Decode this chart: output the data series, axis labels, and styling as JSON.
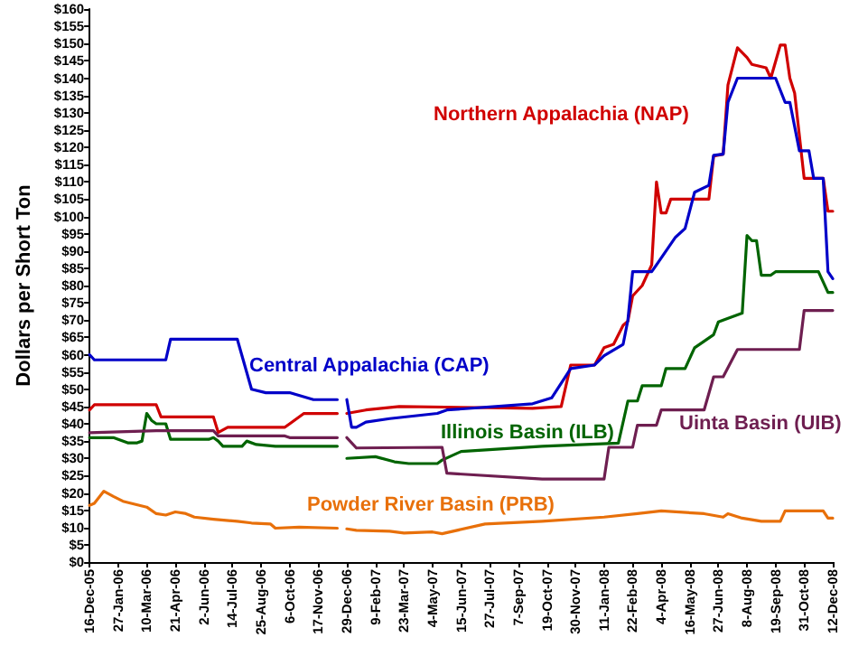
{
  "chart_data": {
    "type": "line",
    "ylabel": "Dollars per Short Ton",
    "legend": false,
    "grid": false,
    "marker": "none",
    "line_style": "solid",
    "xlim": [
      "2005-12-16",
      "2008-12-12"
    ],
    "xticks": [
      {
        "value": "2005-12-16",
        "label": "16-Dec-05"
      },
      {
        "value": "2006-01-27",
        "label": "27-Jan-06"
      },
      {
        "value": "2006-03-10",
        "label": "10-Mar-06"
      },
      {
        "value": "2006-04-21",
        "label": "21-Apr-06"
      },
      {
        "value": "2006-06-02",
        "label": "2-Jun-06"
      },
      {
        "value": "2006-07-14",
        "label": "14-Jul-06"
      },
      {
        "value": "2006-08-25",
        "label": "25-Aug-06"
      },
      {
        "value": "2006-10-06",
        "label": "6-Oct-06"
      },
      {
        "value": "2006-11-17",
        "label": "17-Nov-06"
      },
      {
        "value": "2006-12-29",
        "label": "29-Dec-06"
      },
      {
        "value": "2007-02-09",
        "label": "9-Feb-07"
      },
      {
        "value": "2007-03-23",
        "label": "23-Mar-07"
      },
      {
        "value": "2007-05-04",
        "label": "4-May-07"
      },
      {
        "value": "2007-06-15",
        "label": "15-Jun-07"
      },
      {
        "value": "2007-07-27",
        "label": "27-Jul-07"
      },
      {
        "value": "2007-09-07",
        "label": "7-Sep-07"
      },
      {
        "value": "2007-10-19",
        "label": "19-Oct-07"
      },
      {
        "value": "2007-11-30",
        "label": "30-Nov-07"
      },
      {
        "value": "2008-01-11",
        "label": "11-Jan-08"
      },
      {
        "value": "2008-02-22",
        "label": "22-Feb-08"
      },
      {
        "value": "2008-04-04",
        "label": "4-Apr-08"
      },
      {
        "value": "2008-05-16",
        "label": "16-May-08"
      },
      {
        "value": "2008-06-27",
        "label": "27-Jun-08"
      },
      {
        "value": "2008-08-08",
        "label": "8-Aug-08"
      },
      {
        "value": "2008-09-19",
        "label": "19-Sep-08"
      },
      {
        "value": "2008-10-31",
        "label": "31-Oct-08"
      },
      {
        "value": "2008-12-12",
        "label": "12-Dec-08"
      }
    ],
    "ylim": [
      0,
      160
    ],
    "yticks": [
      {
        "value": 0,
        "label": "$0"
      },
      {
        "value": 5,
        "label": "$5"
      },
      {
        "value": 10,
        "label": "$10"
      },
      {
        "value": 15,
        "label": "$15"
      },
      {
        "value": 20,
        "label": "$20"
      },
      {
        "value": 25,
        "label": "$25"
      },
      {
        "value": 30,
        "label": "$30"
      },
      {
        "value": 35,
        "label": "$35"
      },
      {
        "value": 40,
        "label": "$40"
      },
      {
        "value": 45,
        "label": "$45"
      },
      {
        "value": 50,
        "label": "$50"
      },
      {
        "value": 55,
        "label": "$55"
      },
      {
        "value": 60,
        "label": "$60"
      },
      {
        "value": 65,
        "label": "$65"
      },
      {
        "value": 70,
        "label": "$70"
      },
      {
        "value": 75,
        "label": "$75"
      },
      {
        "value": 80,
        "label": "$80"
      },
      {
        "value": 85,
        "label": "$85"
      },
      {
        "value": 90,
        "label": "$90"
      },
      {
        "value": 95,
        "label": "$95"
      },
      {
        "value": 100,
        "label": "$100"
      },
      {
        "value": 105,
        "label": "$105"
      },
      {
        "value": 110,
        "label": "$110"
      },
      {
        "value": 115,
        "label": "$115"
      },
      {
        "value": 120,
        "label": "$120"
      },
      {
        "value": 125,
        "label": "$125"
      },
      {
        "value": 130,
        "label": "$130"
      },
      {
        "value": 135,
        "label": "$135"
      },
      {
        "value": 140,
        "label": "$140"
      },
      {
        "value": 145,
        "label": "$145"
      },
      {
        "value": 150,
        "label": "$150"
      },
      {
        "value": 155,
        "label": "$155"
      },
      {
        "value": 160,
        "label": "$160"
      }
    ],
    "series": [
      {
        "name": "Northern Appalachia (NAP)",
        "color": "#d00000",
        "x": [
          "2005-12-16",
          "2005-12-23",
          "2006-03-24",
          "2006-03-31",
          "2006-06-16",
          "2006-06-23",
          "2006-07-07",
          "2006-09-29",
          "2006-10-06",
          "2006-10-27",
          "2006-12-15",
          "2006-12-22",
          "2006-12-29",
          "2007-01-26",
          "2007-03-16",
          "2007-09-28",
          "2007-11-09",
          "2007-11-16",
          "2007-11-23",
          "2007-12-28",
          "2008-01-11",
          "2008-01-25",
          "2008-02-08",
          "2008-02-15",
          "2008-02-22",
          "2008-03-07",
          "2008-03-21",
          "2008-03-28",
          "2008-04-04",
          "2008-04-11",
          "2008-04-18",
          "2008-06-13",
          "2008-06-20",
          "2008-07-04",
          "2008-07-11",
          "2008-07-25",
          "2008-08-08",
          "2008-08-15",
          "2008-09-05",
          "2008-09-12",
          "2008-09-26",
          "2008-10-03",
          "2008-10-10",
          "2008-10-17",
          "2008-10-31",
          "2008-11-28",
          "2008-12-05",
          "2008-12-12"
        ],
        "values": [
          44,
          45.5,
          45.5,
          42,
          42,
          37.5,
          39,
          39,
          40,
          43,
          43,
          null,
          43,
          44,
          45,
          44.5,
          45,
          51,
          57,
          57,
          62,
          63,
          68.5,
          69.7,
          77,
          80,
          86,
          110,
          101,
          101,
          105,
          105,
          117.5,
          118,
          138,
          148.8,
          146,
          144,
          143,
          140,
          149.6,
          149.6,
          140,
          135.7,
          111,
          111,
          101.5,
          101.5
        ]
      },
      {
        "name": "Central Appalachia (CAP)",
        "color": "#0000c8",
        "x": [
          "2005-12-16",
          "2005-12-23",
          "2006-04-07",
          "2006-04-14",
          "2006-07-21",
          "2006-08-11",
          "2006-09-01",
          "2006-10-06",
          "2006-11-10",
          "2006-12-15",
          "2006-12-22",
          "2006-12-29",
          "2007-01-05",
          "2007-01-12",
          "2007-01-26",
          "2007-03-02",
          "2007-05-11",
          "2007-05-25",
          "2007-09-28",
          "2007-10-26",
          "2007-11-23",
          "2007-12-28",
          "2008-01-11",
          "2008-02-08",
          "2008-02-15",
          "2008-02-22",
          "2008-03-21",
          "2008-03-28",
          "2008-04-25",
          "2008-05-09",
          "2008-05-23",
          "2008-06-13",
          "2008-06-20",
          "2008-07-04",
          "2008-07-11",
          "2008-07-25",
          "2008-09-19",
          "2008-10-03",
          "2008-10-10",
          "2008-10-24",
          "2008-11-07",
          "2008-11-14",
          "2008-11-28",
          "2008-12-05",
          "2008-12-12"
        ],
        "values": [
          60,
          58.5,
          58.5,
          64.5,
          64.5,
          50,
          49,
          49,
          47,
          47,
          null,
          47,
          39,
          39,
          40.5,
          41.5,
          43,
          44,
          45.8,
          47.5,
          56,
          57,
          59.7,
          63,
          70,
          84,
          84,
          86,
          94,
          96.5,
          107,
          109,
          117.7,
          118,
          133,
          140,
          140,
          133,
          133,
          119,
          119,
          111,
          111,
          84,
          82
        ]
      },
      {
        "name": "Illinois Basin (ILB)",
        "color": "#006400",
        "x": [
          "2005-12-16",
          "2006-01-20",
          "2006-02-10",
          "2006-02-24",
          "2006-03-03",
          "2006-03-10",
          "2006-03-17",
          "2006-03-24",
          "2006-04-07",
          "2006-04-14",
          "2006-06-09",
          "2006-06-16",
          "2006-06-23",
          "2006-06-30",
          "2006-07-28",
          "2006-08-04",
          "2006-08-18",
          "2006-09-15",
          "2006-12-15",
          "2006-12-22",
          "2006-12-29",
          "2007-02-09",
          "2007-03-09",
          "2007-03-30",
          "2007-05-11",
          "2007-05-18",
          "2007-06-15",
          "2007-10-12",
          "2008-02-01",
          "2008-02-15",
          "2008-02-29",
          "2008-03-07",
          "2008-04-04",
          "2008-04-11",
          "2008-05-09",
          "2008-05-23",
          "2008-06-20",
          "2008-06-27",
          "2008-07-04",
          "2008-08-01",
          "2008-08-08",
          "2008-08-15",
          "2008-08-22",
          "2008-08-29",
          "2008-09-12",
          "2008-09-19",
          "2008-11-21",
          "2008-12-05",
          "2008-12-12"
        ],
        "values": [
          36,
          36,
          34.5,
          34.5,
          35,
          43,
          41,
          40,
          40,
          35.5,
          35.5,
          36,
          35,
          33.5,
          33.5,
          35,
          34,
          33.5,
          33.5,
          null,
          30,
          30.5,
          29,
          28.5,
          28.5,
          29.5,
          32,
          33.5,
          34.4,
          46.6,
          46.6,
          51,
          51,
          56,
          56,
          62,
          65.8,
          69.5,
          70,
          72,
          94.5,
          93,
          93,
          83,
          83,
          84,
          84,
          78,
          78
        ]
      },
      {
        "name": "Uinta Basin (UIB)",
        "color": "#6e1e50",
        "x": [
          "2005-12-16",
          "2006-03-24",
          "2006-06-16",
          "2006-06-23",
          "2006-09-29",
          "2006-10-06",
          "2006-12-15",
          "2006-12-22",
          "2006-12-29",
          "2007-01-12",
          "2007-05-18",
          "2007-05-25",
          "2007-10-12",
          "2008-01-11",
          "2008-01-18",
          "2008-02-22",
          "2008-02-29",
          "2008-03-28",
          "2008-04-04",
          "2008-06-06",
          "2008-06-20",
          "2008-07-04",
          "2008-07-25",
          "2008-10-24",
          "2008-10-31",
          "2008-12-12"
        ],
        "values": [
          37.4,
          38,
          38,
          36.5,
          36.5,
          36,
          36,
          null,
          36,
          33,
          33.2,
          25.7,
          24,
          24,
          33.2,
          33.2,
          39.6,
          39.6,
          44,
          44,
          53.6,
          53.6,
          61.5,
          61.5,
          72.8,
          72.8
        ]
      },
      {
        "name": "Powder River Basin (PRB)",
        "color": "#e8700a",
        "x": [
          "2005-12-16",
          "2005-12-23",
          "2006-01-06",
          "2006-01-20",
          "2006-02-03",
          "2006-03-10",
          "2006-03-24",
          "2006-04-07",
          "2006-04-21",
          "2006-05-05",
          "2006-05-19",
          "2006-06-16",
          "2006-07-21",
          "2006-08-11",
          "2006-09-08",
          "2006-09-15",
          "2006-10-20",
          "2006-12-15",
          "2006-12-22",
          "2006-12-29",
          "2007-01-12",
          "2007-03-02",
          "2007-03-23",
          "2007-05-04",
          "2007-05-18",
          "2007-07-20",
          "2007-10-12",
          "2008-01-11",
          "2008-02-29",
          "2008-04-04",
          "2008-06-06",
          "2008-07-04",
          "2008-07-11",
          "2008-08-01",
          "2008-08-29",
          "2008-09-26",
          "2008-10-03",
          "2008-11-28",
          "2008-12-05",
          "2008-12-12"
        ],
        "values": [
          16.4,
          17,
          20.5,
          19,
          17.6,
          15.9,
          14,
          13.6,
          14.5,
          14.1,
          13,
          12.4,
          11.8,
          11.3,
          11,
          9.8,
          10.1,
          9.8,
          null,
          9.6,
          9.2,
          8.9,
          8.4,
          8.7,
          8.2,
          11,
          11.8,
          13,
          14,
          14.8,
          14,
          13,
          14,
          12.7,
          11.8,
          11.8,
          14.8,
          14.8,
          12.7,
          12.7
        ]
      }
    ]
  }
}
